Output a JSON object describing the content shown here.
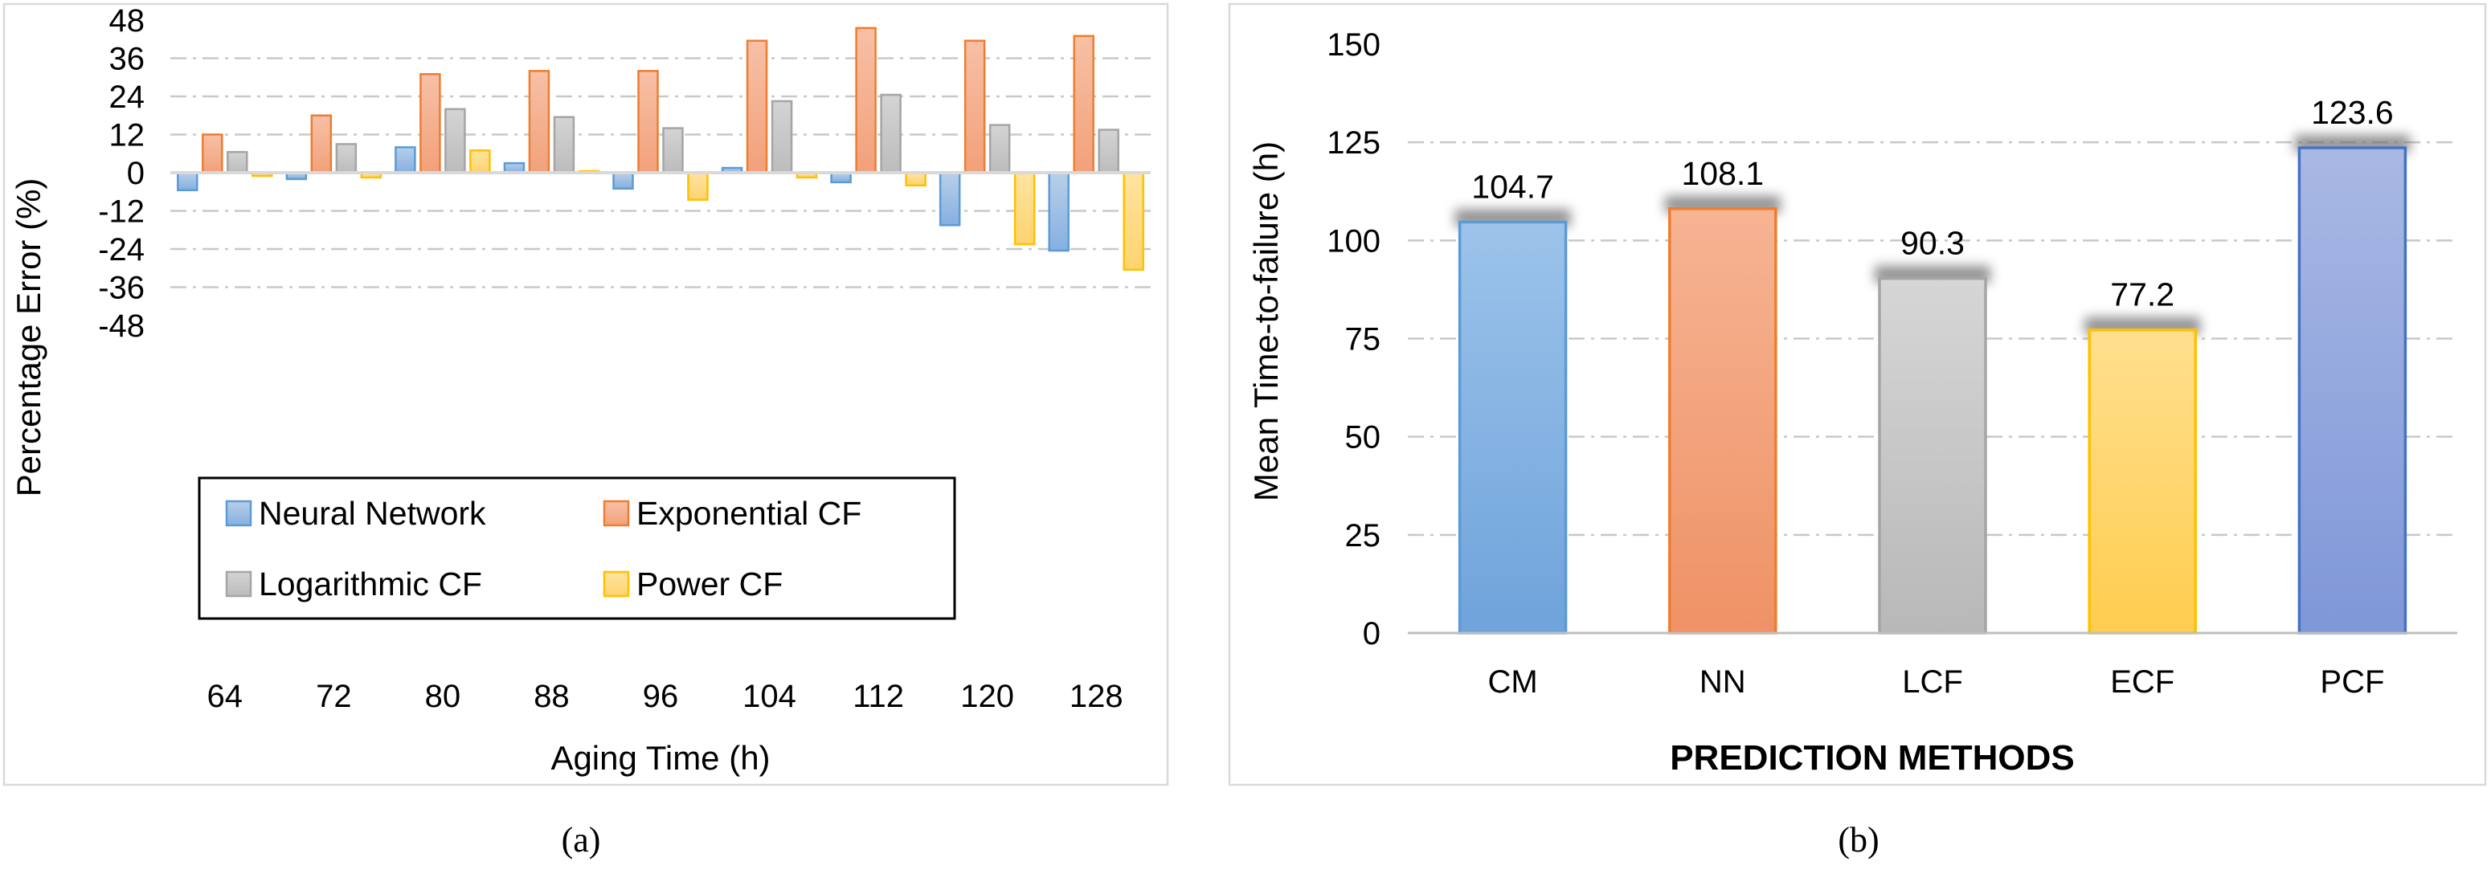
{
  "chart_data": [
    {
      "type": "bar",
      "panel_label": "(a)",
      "xlabel": "Aging Time (h)",
      "ylabel": "Percentage Error (%)",
      "ylim": [
        -48,
        48
      ],
      "yticks": [
        48,
        36,
        24,
        12,
        0,
        -12,
        -24,
        -36,
        -48
      ],
      "categories": [
        "64",
        "72",
        "80",
        "88",
        "96",
        "104",
        "112",
        "120",
        "128"
      ],
      "legend_position": "bottom-left",
      "series": [
        {
          "name": "Neural Network",
          "color": "#5b9bd5",
          "values": [
            -5.5,
            -2,
            8,
            3,
            -5,
            1.5,
            -3,
            -16.5,
            -24.5
          ]
        },
        {
          "name": "Exponential CF",
          "color": "#ed7d31",
          "values": [
            12,
            18,
            31,
            32,
            32,
            41.5,
            45.5,
            41.5,
            43
          ]
        },
        {
          "name": "Logarithmic CF",
          "color": "#a5a5a5",
          "values": [
            6.5,
            9,
            20,
            17.5,
            14,
            22.5,
            24.5,
            15,
            13.5
          ]
        },
        {
          "name": "Power CF",
          "color": "#ffc000",
          "values": [
            -1,
            -1.5,
            7,
            0.5,
            -8.5,
            -1.5,
            -4,
            -22.5,
            -30.5
          ]
        }
      ]
    },
    {
      "type": "bar",
      "panel_label": "(b)",
      "xlabel": "PREDICTION METHODS",
      "ylabel": "Mean Time-to-failure (h)",
      "ylim": [
        0,
        150
      ],
      "yticks": [
        150,
        125,
        100,
        75,
        50,
        25,
        0
      ],
      "categories": [
        "CM",
        "NN",
        "LCF",
        "ECF",
        "PCF"
      ],
      "values": [
        104.7,
        108.1,
        90.3,
        77.2,
        123.6
      ],
      "data_labels": [
        "104.7",
        "108.1",
        "90.3",
        "77.2",
        "123.6"
      ],
      "colors": [
        "#5b9bd5",
        "#ed7d31",
        "#a5a5a5",
        "#ffc000",
        "#4472c4"
      ]
    }
  ]
}
